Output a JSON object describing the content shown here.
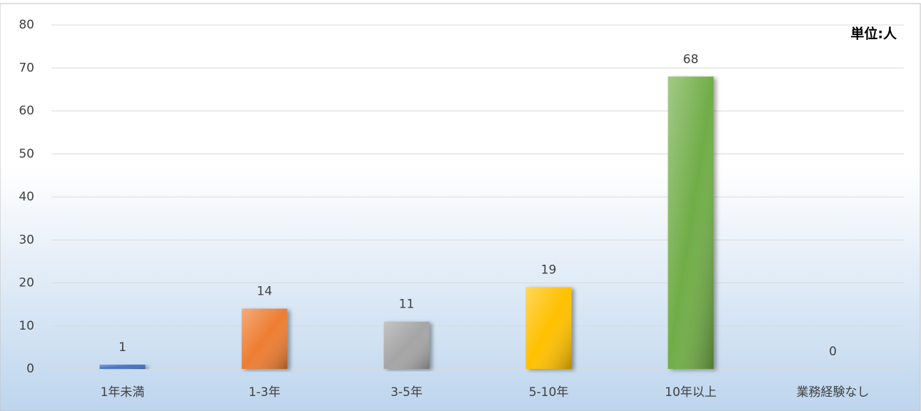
{
  "chart_data": {
    "type": "bar",
    "annotation": "単位:人",
    "categories": [
      "1年未満",
      "1-3年",
      "3-5年",
      "5-10年",
      "10年以上",
      "業務経験なし"
    ],
    "values": [
      1,
      14,
      11,
      19,
      68,
      0
    ],
    "colors": [
      "#4472c4",
      "#ed7d31",
      "#a5a5a5",
      "#ffc000",
      "#70ad47",
      "#5b9bd5"
    ],
    "ylim": [
      0,
      80
    ],
    "yticks": [
      0,
      10,
      20,
      30,
      40,
      50,
      60,
      70,
      80
    ],
    "grid": true
  }
}
